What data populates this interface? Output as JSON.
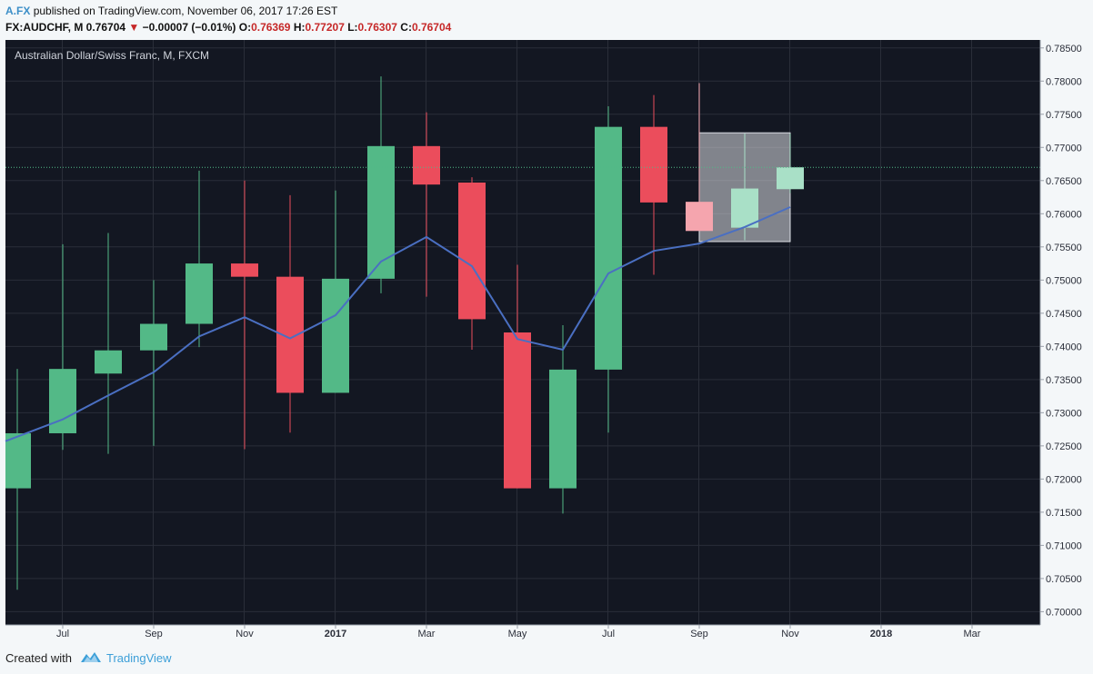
{
  "header": {
    "author": "A.FX",
    "published_text": "published on TradingView.com, November 06, 2017 17:26 EST",
    "symbol": "FX:AUDCHF, M",
    "last": "0.76704",
    "change": "−0.00007 (−0.01%)",
    "o_label": "O:",
    "o_value": "0.76369",
    "h_label": "H:",
    "h_value": "0.77207",
    "l_label": "L:",
    "l_value": "0.76307",
    "c_label": "C:",
    "c_value": "0.76704"
  },
  "pane_label": "Australian Dollar/Swiss Franc, M, FXCM",
  "footer": {
    "created_with": "Created with",
    "brand": "TradingView"
  },
  "colors": {
    "background": "#131722",
    "grid": "#2a2e39",
    "up": "#53b987",
    "down": "#eb4d5c",
    "ma": "#4a6fc2",
    "last_price_line": "#53b987"
  },
  "chart_data": {
    "type": "candlestick",
    "symbol": "FX:AUDCHF",
    "interval": "M",
    "ylim": [
      0.698,
      0.7862
    ],
    "y_ticks": [
      "0.70000",
      "0.70500",
      "0.71000",
      "0.71500",
      "0.72000",
      "0.72500",
      "0.73000",
      "0.73500",
      "0.74000",
      "0.74500",
      "0.75000",
      "0.75500",
      "0.76000",
      "0.76500",
      "0.77000",
      "0.77500",
      "0.78000",
      "0.78500"
    ],
    "x_ticks": [
      {
        "label": "Jul",
        "index": 1,
        "bold": false
      },
      {
        "label": "Sep",
        "index": 3,
        "bold": false
      },
      {
        "label": "Nov",
        "index": 5,
        "bold": false
      },
      {
        "label": "2017",
        "index": 7,
        "bold": true
      },
      {
        "label": "Mar",
        "index": 9,
        "bold": false
      },
      {
        "label": "May",
        "index": 11,
        "bold": false
      },
      {
        "label": "Jul",
        "index": 13,
        "bold": false
      },
      {
        "label": "Sep",
        "index": 15,
        "bold": false
      },
      {
        "label": "Nov",
        "index": 17,
        "bold": false
      },
      {
        "label": "2018",
        "index": 19,
        "bold": true
      },
      {
        "label": "Mar",
        "index": 21,
        "bold": false
      }
    ],
    "candles": [
      {
        "month": "2016-06",
        "open": 0.7186,
        "high": 0.7366,
        "low": 0.7033,
        "close": 0.7269
      },
      {
        "month": "2016-07",
        "open": 0.7269,
        "high": 0.7554,
        "low": 0.7244,
        "close": 0.7366
      },
      {
        "month": "2016-08",
        "open": 0.7359,
        "high": 0.7571,
        "low": 0.7238,
        "close": 0.7394
      },
      {
        "month": "2016-09",
        "open": 0.7394,
        "high": 0.75,
        "low": 0.725,
        "close": 0.7434
      },
      {
        "month": "2016-10",
        "open": 0.7434,
        "high": 0.7665,
        "low": 0.7399,
        "close": 0.7525
      },
      {
        "month": "2016-11",
        "open": 0.7525,
        "high": 0.765,
        "low": 0.7245,
        "close": 0.7505
      },
      {
        "month": "2016-12",
        "open": 0.7505,
        "high": 0.7628,
        "low": 0.727,
        "close": 0.733
      },
      {
        "month": "2017-01",
        "open": 0.733,
        "high": 0.7635,
        "low": 0.733,
        "close": 0.7502
      },
      {
        "month": "2017-02",
        "open": 0.7502,
        "high": 0.7807,
        "low": 0.748,
        "close": 0.7702
      },
      {
        "month": "2017-03",
        "open": 0.7702,
        "high": 0.7753,
        "low": 0.7475,
        "close": 0.7644
      },
      {
        "month": "2017-04",
        "open": 0.7647,
        "high": 0.7655,
        "low": 0.7395,
        "close": 0.7441
      },
      {
        "month": "2017-05",
        "open": 0.7421,
        "high": 0.7523,
        "low": 0.7186,
        "close": 0.7186
      },
      {
        "month": "2017-06",
        "open": 0.7186,
        "high": 0.7432,
        "low": 0.7148,
        "close": 0.7365
      },
      {
        "month": "2017-07",
        "open": 0.7365,
        "high": 0.7762,
        "low": 0.727,
        "close": 0.7731
      },
      {
        "month": "2017-08",
        "open": 0.7731,
        "high": 0.7779,
        "low": 0.7508,
        "close": 0.7617
      },
      {
        "month": "2017-09",
        "open": 0.7618,
        "high": 0.7797,
        "low": 0.7574,
        "close": 0.7574
      },
      {
        "month": "2017-10",
        "open": 0.7579,
        "high": 0.7721,
        "low": 0.756,
        "close": 0.7638
      },
      {
        "month": "2017-11",
        "open": 0.7637,
        "high": 0.7721,
        "low": 0.7631,
        "close": 0.767
      }
    ],
    "moving_average": [
      0.7257,
      0.729,
      0.7326,
      0.7361,
      0.7415,
      0.7444,
      0.7412,
      0.7447,
      0.7528,
      0.7565,
      0.7521,
      0.7411,
      0.7395,
      0.751,
      0.7544,
      0.7555,
      0.758,
      0.761
    ],
    "highlight_box": {
      "from_month": "2017-09",
      "to_month": "2017-11",
      "price_low": 0.7558,
      "price_high": 0.7722
    },
    "last_price": 0.767
  }
}
